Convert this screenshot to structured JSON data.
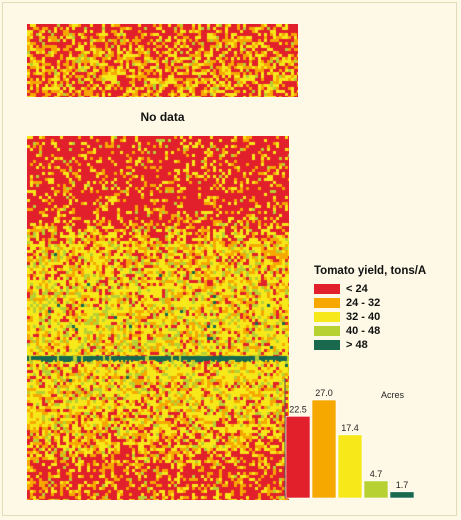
{
  "no_data_label": "No data",
  "legend": {
    "title": "Tomato yield, tons/A",
    "items": [
      {
        "label": "< 24",
        "color": "#e2202b"
      },
      {
        "label": "24 - 32",
        "color": "#f6a800"
      },
      {
        "label": "32 - 40",
        "color": "#f7e81a"
      },
      {
        "label": "40 - 48",
        "color": "#b7d133"
      },
      {
        "label": "> 48",
        "color": "#19694e"
      }
    ]
  },
  "chart_data": {
    "type": "bar",
    "title": "Acres",
    "categories": [
      "< 24",
      "24 - 32",
      "32 - 40",
      "40 - 48",
      "> 48"
    ],
    "values": [
      22.5,
      27.0,
      17.4,
      4.7,
      1.7
    ],
    "value_labels": [
      "22.5",
      "27.0",
      "17.4",
      "4.7",
      "1.7"
    ],
    "colors": [
      "#e2202b",
      "#f6a800",
      "#f7e81a",
      "#b7d133",
      "#19694e"
    ],
    "ylim": [
      0,
      27.0
    ]
  }
}
